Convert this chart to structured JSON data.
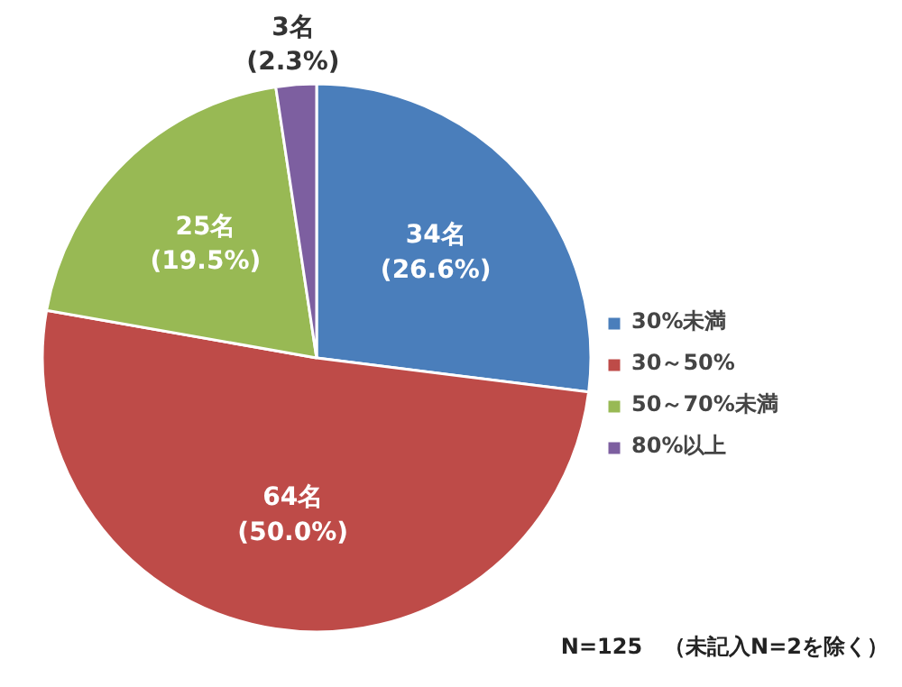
{
  "chart_data": {
    "type": "pie",
    "categories": [
      "30%未満",
      "30～50%",
      "50～70%未満",
      "80%以上"
    ],
    "values": [
      34,
      64,
      25,
      3
    ],
    "colors": [
      "#4a7ebb",
      "#be4b48",
      "#98b954",
      "#7d5fa0"
    ],
    "value_labels": [
      "34名\n(26.6%)",
      "64名\n(50.0%)",
      "25名\n(19.5%)",
      "3名\n(2.3%)"
    ],
    "legend": "right",
    "annotations": [
      "N=125　（未記入N=2を除く）"
    ]
  }
}
